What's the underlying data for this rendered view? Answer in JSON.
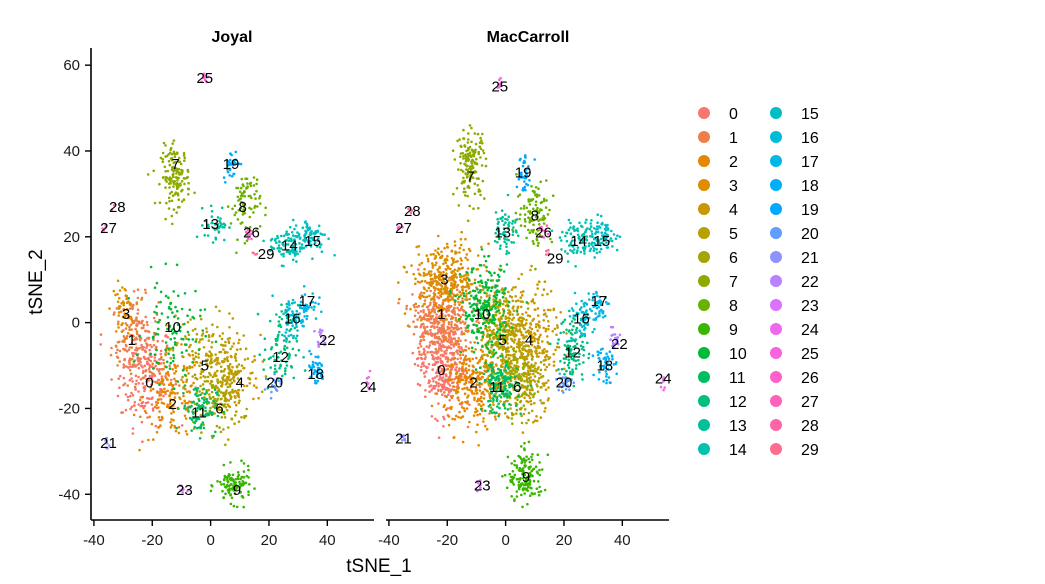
{
  "chart_data": {
    "type": "scatter",
    "xlabel": "tSNE_1",
    "ylabel": "tSNE_2",
    "xlim": [
      -41,
      56
    ],
    "ylim": [
      -46,
      64
    ],
    "xticks": [
      -40,
      -20,
      0,
      20,
      40
    ],
    "yticks": [
      -40,
      -20,
      0,
      20,
      40,
      60
    ],
    "legend_position": "right",
    "legend": [
      "0",
      "1",
      "2",
      "3",
      "4",
      "5",
      "6",
      "7",
      "8",
      "9",
      "10",
      "11",
      "12",
      "13",
      "14",
      "15",
      "16",
      "17",
      "18",
      "19",
      "20",
      "21",
      "22",
      "23",
      "24",
      "25",
      "26",
      "27",
      "28",
      "29"
    ],
    "colors": [
      "#F8766D",
      "#EF7F49",
      "#E58700",
      "#DC8D00",
      "#C99800",
      "#B8A000",
      "#A3A500",
      "#8CAB00",
      "#6BB100",
      "#39B600",
      "#00BA38",
      "#00BD5F",
      "#00BF7D",
      "#00C097",
      "#00C0AF",
      "#00BFC4",
      "#00BCD8",
      "#00B8E7",
      "#00B0F6",
      "#00A9FF",
      "#619CFF",
      "#8F91FF",
      "#B983FF",
      "#DB72FB",
      "#ED68ED",
      "#F863DF",
      "#FF61C9",
      "#FF62BC",
      "#FF66A8",
      "#FF6C91"
    ],
    "panels": [
      {
        "title": "Joyal",
        "clusters": [
          {
            "id": "0",
            "x": -22,
            "y": -12,
            "sx": 4.5,
            "sy": 6,
            "n": 200,
            "lx": -21,
            "ly": -14
          },
          {
            "id": "1",
            "x": -26,
            "y": -4,
            "sx": 4,
            "sy": 5,
            "n": 150,
            "lx": -27,
            "ly": -4
          },
          {
            "id": "2",
            "x": -13,
            "y": -17,
            "sx": 5,
            "sy": 5,
            "n": 160,
            "lx": -13,
            "ly": -19
          },
          {
            "id": "3",
            "x": -30,
            "y": 3,
            "sx": 2,
            "sy": 3,
            "n": 60,
            "lx": -29,
            "ly": 2
          },
          {
            "id": "4",
            "x": 7,
            "y": -13,
            "sx": 5,
            "sy": 5,
            "n": 150,
            "lx": 10,
            "ly": -14
          },
          {
            "id": "5",
            "x": -2,
            "y": -8,
            "sx": 6,
            "sy": 5,
            "n": 150,
            "lx": -2,
            "ly": -10
          },
          {
            "id": "6",
            "x": 3,
            "y": -18,
            "sx": 4,
            "sy": 4,
            "n": 110,
            "lx": 3,
            "ly": -20
          },
          {
            "id": "7",
            "x": -12,
            "y": 34,
            "sx": 2.5,
            "sy": 3.5,
            "n": 150,
            "lx": -12,
            "ly": 37
          },
          {
            "id": "8",
            "x": 12,
            "y": 28,
            "sx": 2.5,
            "sy": 4,
            "n": 80,
            "lx": 11,
            "ly": 27
          },
          {
            "id": "9",
            "x": 8,
            "y": -38,
            "sx": 3,
            "sy": 2,
            "n": 110,
            "lx": 9,
            "ly": -39
          },
          {
            "id": "10",
            "x": -13,
            "y": -2,
            "sx": 5,
            "sy": 6,
            "n": 100,
            "lx": -13,
            "ly": -1
          },
          {
            "id": "11",
            "x": -4,
            "y": -20,
            "sx": 3,
            "sy": 3,
            "n": 90,
            "lx": -4,
            "ly": -21
          },
          {
            "id": "12",
            "x": 24,
            "y": -6,
            "sx": 3,
            "sy": 5,
            "n": 90,
            "lx": 24,
            "ly": -8
          },
          {
            "id": "13",
            "x": 2,
            "y": 23,
            "sx": 2,
            "sy": 2,
            "n": 40,
            "lx": 0,
            "ly": 23
          },
          {
            "id": "14",
            "x": 26,
            "y": 18,
            "sx": 3,
            "sy": 2,
            "n": 80,
            "lx": 27,
            "ly": 18
          },
          {
            "id": "15",
            "x": 34,
            "y": 20,
            "sx": 3,
            "sy": 2,
            "n": 80,
            "lx": 35,
            "ly": 19
          },
          {
            "id": "16",
            "x": 28,
            "y": 1,
            "sx": 2,
            "sy": 2.5,
            "n": 50,
            "lx": 28,
            "ly": 1
          },
          {
            "id": "17",
            "x": 33,
            "y": 4,
            "sx": 1.8,
            "sy": 1.8,
            "n": 40,
            "lx": 33,
            "ly": 5
          },
          {
            "id": "18",
            "x": 36,
            "y": -11,
            "sx": 1.5,
            "sy": 2,
            "n": 40,
            "lx": 36,
            "ly": -12
          },
          {
            "id": "19",
            "x": 7,
            "y": 37,
            "sx": 1.3,
            "sy": 1.8,
            "n": 30,
            "lx": 7,
            "ly": 37
          },
          {
            "id": "20",
            "x": 22,
            "y": -14,
            "sx": 1.2,
            "sy": 1.2,
            "n": 20,
            "lx": 22,
            "ly": -14
          },
          {
            "id": "21",
            "x": -36,
            "y": -28,
            "sx": 0.6,
            "sy": 0.6,
            "n": 8,
            "lx": -35,
            "ly": -28
          },
          {
            "id": "22",
            "x": 38,
            "y": -4,
            "sx": 1,
            "sy": 1.3,
            "n": 15,
            "lx": 40,
            "ly": -4
          },
          {
            "id": "23",
            "x": -9,
            "y": -39,
            "sx": 0.8,
            "sy": 0.8,
            "n": 8,
            "lx": -9,
            "ly": -39
          },
          {
            "id": "24",
            "x": 54,
            "y": -14,
            "sx": 0.4,
            "sy": 1,
            "n": 8,
            "lx": 54,
            "ly": -15
          },
          {
            "id": "25",
            "x": -2,
            "y": 57,
            "sx": 0.6,
            "sy": 0.8,
            "n": 8,
            "lx": -2,
            "ly": 57
          },
          {
            "id": "26",
            "x": 13,
            "y": 21,
            "sx": 0.8,
            "sy": 1,
            "n": 10,
            "lx": 14,
            "ly": 21
          },
          {
            "id": "27",
            "x": -36,
            "y": 22,
            "sx": 0.5,
            "sy": 0.5,
            "n": 5,
            "lx": -35,
            "ly": 22
          },
          {
            "id": "28",
            "x": -33,
            "y": 27,
            "sx": 0.4,
            "sy": 0.4,
            "n": 3,
            "lx": -32,
            "ly": 27
          },
          {
            "id": "29",
            "x": 15,
            "y": 16,
            "sx": 0.5,
            "sy": 0.5,
            "n": 4,
            "lx": 19,
            "ly": 16
          }
        ]
      },
      {
        "title": "MacCarroll",
        "clusters": [
          {
            "id": "0",
            "x": -22,
            "y": -9,
            "sx": 4,
            "sy": 6,
            "n": 350,
            "lx": -22,
            "ly": -11
          },
          {
            "id": "1",
            "x": -22,
            "y": 1,
            "sx": 5,
            "sy": 4,
            "n": 300,
            "lx": -22,
            "ly": 2
          },
          {
            "id": "2",
            "x": -11,
            "y": -15,
            "sx": 5,
            "sy": 5,
            "n": 280,
            "lx": -11,
            "ly": -14
          },
          {
            "id": "3",
            "x": -20,
            "y": 10,
            "sx": 6,
            "sy": 4,
            "n": 350,
            "lx": -21,
            "ly": 10
          },
          {
            "id": "4",
            "x": 8,
            "y": -6,
            "sx": 5,
            "sy": 7,
            "n": 350,
            "lx": 8,
            "ly": -4
          },
          {
            "id": "5",
            "x": -1,
            "y": -2,
            "sx": 4,
            "sy": 5,
            "n": 300,
            "lx": -1,
            "ly": -4
          },
          {
            "id": "6",
            "x": 4,
            "y": -14,
            "sx": 4,
            "sy": 4,
            "n": 200,
            "lx": 4,
            "ly": -15
          },
          {
            "id": "7",
            "x": -12,
            "y": 37,
            "sx": 2.5,
            "sy": 4,
            "n": 150,
            "lx": -12,
            "ly": 34
          },
          {
            "id": "8",
            "x": 10,
            "y": 26,
            "sx": 3,
            "sy": 4,
            "n": 100,
            "lx": 10,
            "ly": 25
          },
          {
            "id": "9",
            "x": 7,
            "y": -36,
            "sx": 3,
            "sy": 3,
            "n": 150,
            "lx": 7,
            "ly": -36
          },
          {
            "id": "10",
            "x": -7,
            "y": 3,
            "sx": 4,
            "sy": 5,
            "n": 250,
            "lx": -8,
            "ly": 2
          },
          {
            "id": "11",
            "x": -2,
            "y": -15,
            "sx": 3,
            "sy": 3,
            "n": 150,
            "lx": -3,
            "ly": -15
          },
          {
            "id": "12",
            "x": 23,
            "y": -6,
            "sx": 2.5,
            "sy": 4,
            "n": 100,
            "lx": 23,
            "ly": -7
          },
          {
            "id": "13",
            "x": 0,
            "y": 22,
            "sx": 2,
            "sy": 3,
            "n": 60,
            "lx": -1,
            "ly": 21
          },
          {
            "id": "14",
            "x": 25,
            "y": 19,
            "sx": 3,
            "sy": 2,
            "n": 80,
            "lx": 25,
            "ly": 19
          },
          {
            "id": "15",
            "x": 33,
            "y": 20,
            "sx": 3,
            "sy": 2,
            "n": 80,
            "lx": 33,
            "ly": 19
          },
          {
            "id": "16",
            "x": 26,
            "y": 1,
            "sx": 2,
            "sy": 2.5,
            "n": 60,
            "lx": 26,
            "ly": 1
          },
          {
            "id": "17",
            "x": 32,
            "y": 4,
            "sx": 1.8,
            "sy": 1.8,
            "n": 40,
            "lx": 32,
            "ly": 5
          },
          {
            "id": "18",
            "x": 34,
            "y": -9,
            "sx": 1.5,
            "sy": 2.5,
            "n": 50,
            "lx": 34,
            "ly": -10
          },
          {
            "id": "19",
            "x": 6,
            "y": 35,
            "sx": 1.2,
            "sy": 2.5,
            "n": 40,
            "lx": 6,
            "ly": 35
          },
          {
            "id": "20",
            "x": 20,
            "y": -14,
            "sx": 1.3,
            "sy": 1.3,
            "n": 25,
            "lx": 20,
            "ly": -14
          },
          {
            "id": "21",
            "x": -35,
            "y": -27,
            "sx": 0.6,
            "sy": 0.6,
            "n": 8,
            "lx": -35,
            "ly": -27
          },
          {
            "id": "22",
            "x": 37,
            "y": -4,
            "sx": 1.3,
            "sy": 1.3,
            "n": 20,
            "lx": 39,
            "ly": -5
          },
          {
            "id": "23",
            "x": -9,
            "y": -38,
            "sx": 0.8,
            "sy": 0.8,
            "n": 8,
            "lx": -8,
            "ly": -38
          },
          {
            "id": "24",
            "x": 54,
            "y": -14,
            "sx": 0.4,
            "sy": 1,
            "n": 8,
            "lx": 54,
            "ly": -13
          },
          {
            "id": "25",
            "x": -2,
            "y": 56,
            "sx": 0.5,
            "sy": 0.8,
            "n": 8,
            "lx": -2,
            "ly": 55
          },
          {
            "id": "26",
            "x": 13,
            "y": 21,
            "sx": 0.8,
            "sy": 1.2,
            "n": 12,
            "lx": 13,
            "ly": 21
          },
          {
            "id": "27",
            "x": -36,
            "y": 22,
            "sx": 0.5,
            "sy": 0.5,
            "n": 5,
            "lx": -35,
            "ly": 22
          },
          {
            "id": "28",
            "x": -33,
            "y": 26,
            "sx": 0.4,
            "sy": 0.4,
            "n": 3,
            "lx": -32,
            "ly": 26
          },
          {
            "id": "29",
            "x": 14,
            "y": 16,
            "sx": 0.5,
            "sy": 0.5,
            "n": 4,
            "lx": 17,
            "ly": 15
          }
        ]
      }
    ]
  }
}
